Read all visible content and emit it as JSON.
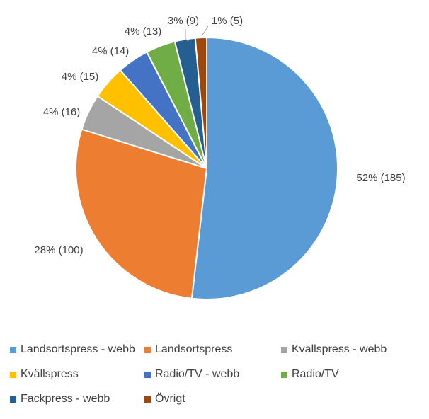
{
  "chart_data": {
    "type": "pie",
    "title": "",
    "slices": [
      {
        "name": "Landsortspress - webb",
        "value": 185,
        "label": "52% (185)",
        "color": "#5B9BD5"
      },
      {
        "name": "Landsortspress",
        "value": 100,
        "label": "28% (100)",
        "color": "#ED7D31"
      },
      {
        "name": "Kvällspress - webb",
        "value": 16,
        "label": "4% (16)",
        "color": "#A5A5A5"
      },
      {
        "name": "Kvällspress",
        "value": 15,
        "label": "4% (15)",
        "color": "#FFC000"
      },
      {
        "name": "Radio/TV - webb",
        "value": 14,
        "label": "4% (14)",
        "color": "#4472C4"
      },
      {
        "name": "Radio/TV",
        "value": 13,
        "label": "4% (13)",
        "color": "#70AD47"
      },
      {
        "name": "Fackpress - webb",
        "value": 9,
        "label": "3% (9)",
        "color": "#255E91"
      },
      {
        "name": "Övrigt",
        "value": 5,
        "label": "1% (5)",
        "color": "#9E480E"
      }
    ],
    "legend_position": "bottom"
  }
}
